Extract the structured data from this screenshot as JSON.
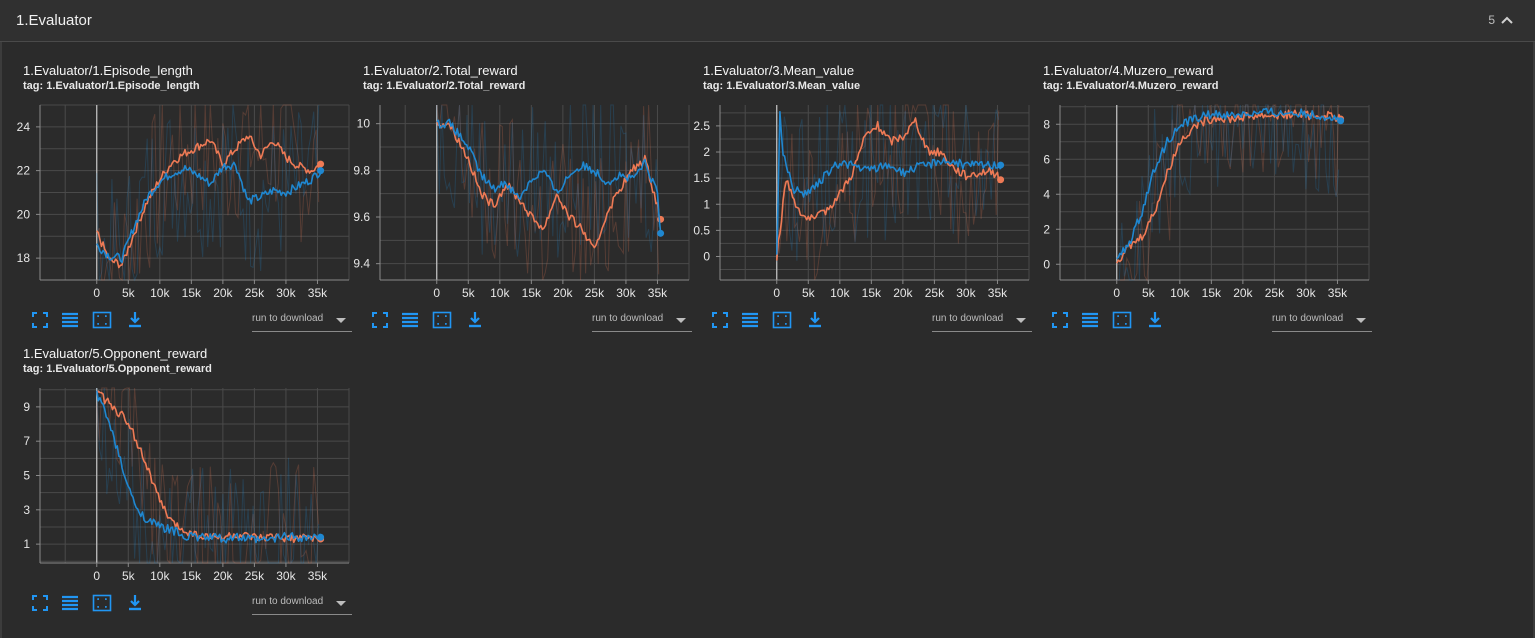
{
  "section": {
    "title": "1.Evaluator",
    "count": "5"
  },
  "colors": {
    "background": "#2b2b2b",
    "orange": "#ee7a55",
    "blue": "#1f87d0",
    "grid": "#4a4a4a",
    "axis": "#c8c8c8",
    "icon": "#2196f3"
  },
  "toolbar": {
    "icons": [
      "fullscreen-icon",
      "data-table-icon",
      "fit-domain-icon",
      "download-icon"
    ],
    "download_placeholder": "run to download"
  },
  "cards": [
    {
      "title": "1.Evaluator/1.Episode_length",
      "tag": "tag: 1.Evaluator/1.Episode_length"
    },
    {
      "title": "1.Evaluator/2.Total_reward",
      "tag": "tag: 1.Evaluator/2.Total_reward"
    },
    {
      "title": "1.Evaluator/3.Mean_value",
      "tag": "tag: 1.Evaluator/3.Mean_value"
    },
    {
      "title": "1.Evaluator/4.Muzero_reward",
      "tag": "tag: 1.Evaluator/4.Muzero_reward"
    },
    {
      "title": "1.Evaluator/5.Opponent_reward",
      "tag": "tag: 1.Evaluator/5.Opponent_reward"
    }
  ],
  "chart_data": [
    {
      "type": "line",
      "title": "1.Evaluator/1.Episode_length",
      "xlim": [
        -9000,
        40000
      ],
      "ylim": [
        17,
        25
      ],
      "x_ticks": [
        "0",
        "5k",
        "10k",
        "15k",
        "20k",
        "25k",
        "30k",
        "35k"
      ],
      "y_ticks": [
        18,
        20,
        22,
        24
      ],
      "y_tick_labels": [
        "18",
        "20",
        "22",
        "24"
      ],
      "series": [
        {
          "name": "orange",
          "x": [
            0,
            2000,
            4000,
            6000,
            8000,
            10000,
            12000,
            14000,
            16000,
            18000,
            20000,
            22000,
            24000,
            26000,
            28000,
            30000,
            32000,
            34000,
            35500
          ],
          "y": [
            19.2,
            17.9,
            17.7,
            19.2,
            20.6,
            21.6,
            22.4,
            22.8,
            23.1,
            23.4,
            22.3,
            23.0,
            23.6,
            22.7,
            23.4,
            22.6,
            22.2,
            22.0,
            22.3
          ]
        },
        {
          "name": "blue",
          "x": [
            0,
            2000,
            4000,
            6000,
            8000,
            10000,
            12000,
            14000,
            16000,
            18000,
            20000,
            22000,
            24000,
            26000,
            28000,
            30000,
            32000,
            34000,
            35500
          ],
          "y": [
            18.6,
            18.1,
            18.0,
            19.5,
            20.8,
            21.5,
            21.9,
            22.1,
            21.8,
            21.4,
            22.2,
            22.3,
            20.6,
            20.8,
            21.1,
            21.0,
            21.3,
            21.6,
            22.0
          ]
        }
      ]
    },
    {
      "type": "line",
      "title": "1.Evaluator/2.Total_reward",
      "xlim": [
        -9000,
        40000
      ],
      "ylim": [
        9.33,
        10.08
      ],
      "x_ticks": [
        "0",
        "5k",
        "10k",
        "15k",
        "20k",
        "25k",
        "30k",
        "35k"
      ],
      "y_ticks": [
        9.4,
        9.6,
        9.8,
        10
      ],
      "y_tick_labels": [
        "9.4",
        "9.6",
        "9.8",
        "10"
      ],
      "series": [
        {
          "name": "orange",
          "x": [
            0,
            2000,
            3000,
            5000,
            7000,
            9000,
            11000,
            13000,
            15000,
            17000,
            19000,
            21000,
            23000,
            25000,
            27000,
            29000,
            31000,
            33000,
            35000,
            35500
          ],
          "y": [
            10,
            10,
            9.95,
            9.85,
            9.7,
            9.65,
            9.74,
            9.68,
            9.6,
            9.55,
            9.7,
            9.6,
            9.55,
            9.45,
            9.62,
            9.72,
            9.8,
            9.85,
            9.65,
            9.59
          ]
        },
        {
          "name": "blue",
          "x": [
            0,
            2000,
            3000,
            5000,
            7000,
            9000,
            11000,
            13000,
            15000,
            17000,
            19000,
            21000,
            23000,
            25000,
            27000,
            29000,
            31000,
            33000,
            35000,
            35500
          ],
          "y": [
            10,
            10,
            9.97,
            9.9,
            9.78,
            9.72,
            9.75,
            9.68,
            9.76,
            9.8,
            9.7,
            9.78,
            9.82,
            9.8,
            9.75,
            9.78,
            9.76,
            9.83,
            9.7,
            9.53
          ]
        }
      ]
    },
    {
      "type": "line",
      "title": "1.Evaluator/3.Mean_value",
      "xlim": [
        -9000,
        40000
      ],
      "ylim": [
        -0.45,
        2.9
      ],
      "x_ticks": [
        "0",
        "5k",
        "10k",
        "15k",
        "20k",
        "25k",
        "30k",
        "35k"
      ],
      "y_ticks": [
        0,
        0.5,
        1,
        1.5,
        2,
        2.5
      ],
      "y_tick_labels": [
        "0",
        "0.5",
        "1",
        "1.5",
        "2",
        "2.5"
      ],
      "series": [
        {
          "name": "orange",
          "x": [
            0,
            500,
            1500,
            3000,
            4500,
            6000,
            8000,
            10000,
            12000,
            14000,
            16000,
            18000,
            20000,
            22000,
            24000,
            26000,
            28000,
            30000,
            32000,
            34000,
            35500
          ],
          "y": [
            0,
            0.5,
            1.5,
            1.0,
            0.75,
            0.7,
            0.9,
            1.2,
            1.6,
            2.3,
            2.5,
            2.2,
            2.3,
            2.6,
            2.0,
            2.0,
            1.7,
            1.55,
            1.6,
            1.65,
            1.47
          ]
        },
        {
          "name": "blue",
          "x": [
            0,
            500,
            1000,
            1500,
            2500,
            4000,
            6000,
            8000,
            10000,
            12000,
            14000,
            16000,
            18000,
            20000,
            22000,
            24000,
            26000,
            28000,
            30000,
            32000,
            34000,
            35500
          ],
          "y": [
            0,
            2.7,
            2.0,
            1.8,
            1.3,
            1.2,
            1.3,
            1.6,
            1.8,
            1.75,
            1.65,
            1.7,
            1.75,
            1.6,
            1.7,
            1.75,
            1.85,
            1.8,
            1.75,
            1.75,
            1.75,
            1.75
          ]
        }
      ]
    },
    {
      "type": "line",
      "title": "1.Evaluator/4.Muzero_reward",
      "xlim": [
        -9000,
        40000
      ],
      "ylim": [
        -0.9,
        9.1
      ],
      "x_ticks": [
        "0",
        "5k",
        "10k",
        "15k",
        "20k",
        "25k",
        "30k",
        "35k"
      ],
      "y_ticks": [
        0,
        2,
        4,
        6,
        8
      ],
      "y_tick_labels": [
        "0",
        "2",
        "4",
        "6",
        "8"
      ],
      "series": [
        {
          "name": "orange",
          "x": [
            0,
            2000,
            4000,
            6000,
            8000,
            10000,
            12000,
            14000,
            16000,
            18000,
            20000,
            22000,
            24000,
            26000,
            28000,
            30000,
            32000,
            34000,
            35500
          ],
          "y": [
            0.2,
            1.0,
            1.6,
            3.0,
            5.2,
            7.0,
            7.8,
            8.2,
            8.4,
            8.3,
            8.4,
            8.5,
            8.5,
            8.5,
            8.6,
            8.5,
            8.5,
            8.5,
            8.3
          ]
        },
        {
          "name": "blue",
          "x": [
            0,
            2000,
            4000,
            6000,
            8000,
            10000,
            12000,
            14000,
            16000,
            18000,
            20000,
            22000,
            24000,
            26000,
            28000,
            30000,
            32000,
            34000,
            35500
          ],
          "y": [
            0.2,
            1.2,
            3.0,
            5.5,
            7.0,
            7.9,
            8.3,
            8.5,
            8.6,
            8.5,
            8.6,
            8.6,
            8.7,
            8.6,
            8.7,
            8.6,
            8.5,
            8.4,
            8.2
          ]
        }
      ]
    },
    {
      "type": "line",
      "title": "1.Evaluator/5.Opponent_reward",
      "xlim": [
        -9000,
        40000
      ],
      "ylim": [
        -0.1,
        10.1
      ],
      "x_ticks": [
        "0",
        "5k",
        "10k",
        "15k",
        "20k",
        "25k",
        "30k",
        "35k"
      ],
      "y_ticks": [
        1,
        3,
        5,
        7,
        9
      ],
      "y_tick_labels": [
        "1",
        "3",
        "5",
        "7",
        "9"
      ],
      "series": [
        {
          "name": "orange",
          "x": [
            0,
            1000,
            2000,
            4000,
            6000,
            8000,
            10000,
            12000,
            14000,
            16000,
            18000,
            20000,
            22000,
            24000,
            26000,
            28000,
            30000,
            32000,
            34000,
            35500
          ],
          "y": [
            9.8,
            9.5,
            9.2,
            8.5,
            7.3,
            5.5,
            3.5,
            2.2,
            1.8,
            1.5,
            1.4,
            1.4,
            1.5,
            1.4,
            1.3,
            1.4,
            1.4,
            1.3,
            1.4,
            1.3
          ]
        },
        {
          "name": "blue",
          "x": [
            0,
            1000,
            2000,
            3000,
            4000,
            5000,
            6000,
            8000,
            10000,
            12000,
            14000,
            16000,
            18000,
            20000,
            22000,
            24000,
            26000,
            28000,
            30000,
            32000,
            34000,
            35500
          ],
          "y": [
            9.8,
            9.0,
            8.0,
            6.8,
            5.5,
            4.3,
            3.3,
            2.4,
            2.0,
            1.8,
            1.5,
            1.4,
            1.4,
            1.3,
            1.4,
            1.3,
            1.2,
            1.3,
            1.5,
            1.4,
            1.4,
            1.4
          ]
        }
      ]
    }
  ]
}
